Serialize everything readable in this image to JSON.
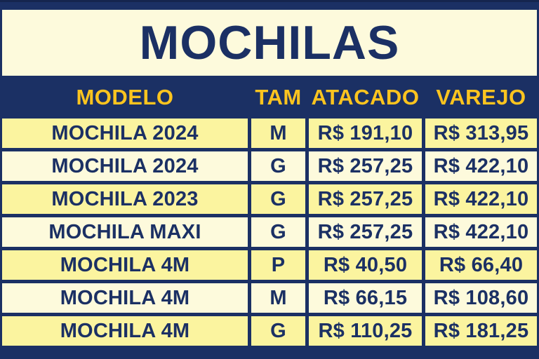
{
  "title": "MOCHILAS",
  "colors": {
    "navy": "#1b3064",
    "navy_dark": "#15254e",
    "cream": "#fdfadc",
    "yellow": "#fbf49f",
    "gold": "#fdc41f",
    "text": "#1b3064"
  },
  "chart_data": {
    "type": "table",
    "title": "MOCHILAS",
    "columns": [
      "MODELO",
      "TAM",
      "ATACADO",
      "VAREJO"
    ],
    "rows": [
      {
        "modelo": "MOCHILA 2024",
        "tam": "M",
        "atacado": "R$ 191,10",
        "varejo": "R$ 313,95"
      },
      {
        "modelo": "MOCHILA 2024",
        "tam": "G",
        "atacado": "R$ 257,25",
        "varejo": "R$ 422,10"
      },
      {
        "modelo": "MOCHILA 2023",
        "tam": "G",
        "atacado": "R$ 257,25",
        "varejo": "R$ 422,10"
      },
      {
        "modelo": "MOCHILA MAXI",
        "tam": "G",
        "atacado": "R$ 257,25",
        "varejo": "R$ 422,10"
      },
      {
        "modelo": "MOCHILA 4M",
        "tam": "P",
        "atacado": "R$ 40,50",
        "varejo": "R$ 66,40"
      },
      {
        "modelo": "MOCHILA 4M",
        "tam": "M",
        "atacado": "R$ 66,15",
        "varejo": "R$ 108,60"
      },
      {
        "modelo": "MOCHILA 4M",
        "tam": "G",
        "atacado": "R$ 110,25",
        "varejo": "R$ 181,25"
      }
    ]
  }
}
